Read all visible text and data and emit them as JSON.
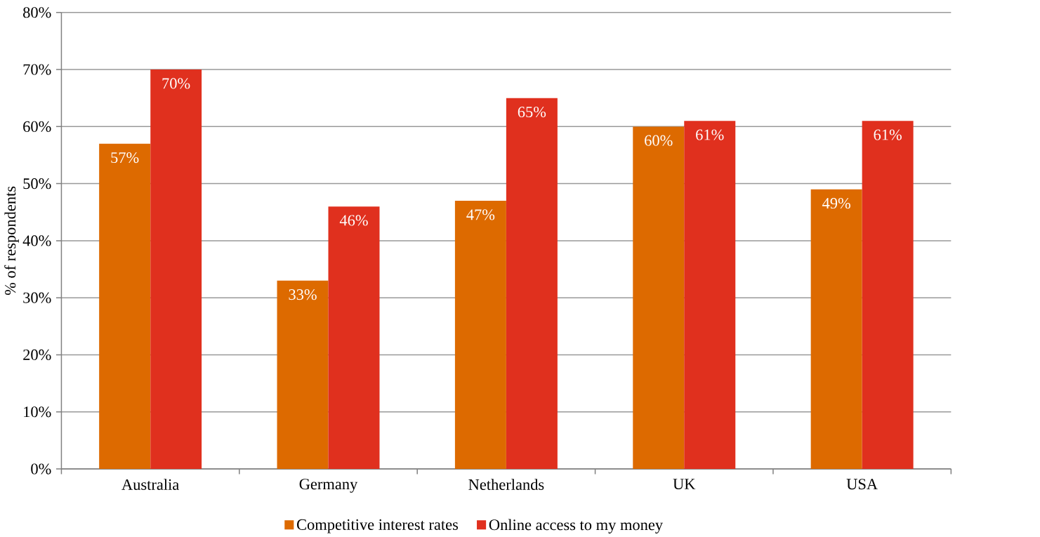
{
  "chart_data": {
    "type": "bar",
    "ylabel": "% of respondents",
    "categories": [
      "Australia",
      "Germany",
      "Netherlands",
      "UK",
      "USA"
    ],
    "series": [
      {
        "name": "Competitive interest rates",
        "color": "#dd6a00",
        "values": [
          57,
          33,
          47,
          60,
          49
        ],
        "value_labels": [
          "57%",
          "33%",
          "47%",
          "60%",
          "49%"
        ]
      },
      {
        "name": "Online access to my money",
        "color": "#e0301e",
        "values": [
          70,
          46,
          65,
          61,
          61
        ],
        "value_labels": [
          "70%",
          "46%",
          "65%",
          "61%",
          "61%"
        ]
      }
    ],
    "ylim": [
      0,
      80
    ],
    "yticks": [
      {
        "value": 0,
        "label": "0%"
      },
      {
        "value": 10,
        "label": "10%"
      },
      {
        "value": 20,
        "label": "20%"
      },
      {
        "value": 30,
        "label": "30%"
      },
      {
        "value": 40,
        "label": "40%"
      },
      {
        "value": 50,
        "label": "50%"
      },
      {
        "value": 60,
        "label": "60%"
      },
      {
        "value": 70,
        "label": "70%"
      },
      {
        "value": 80,
        "label": "80%"
      }
    ],
    "grid": "y",
    "legend": "bottom"
  }
}
